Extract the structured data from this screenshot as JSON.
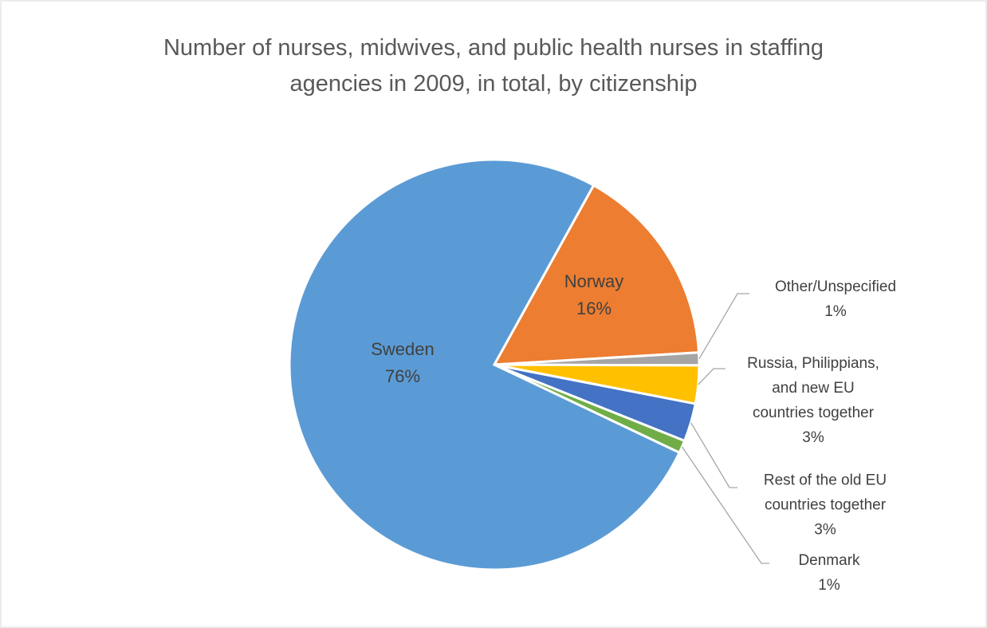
{
  "chart_data": {
    "type": "pie",
    "title": "Number of nurses, midwives, and public health nurses in staffing agencies in 2009, in total, by citizenship",
    "categories": [
      "Norway",
      "Other/Unspecified",
      "Russia, Philippians, and new EU countries together",
      "Rest of the old EU countries together",
      "Denmark",
      "Sweden"
    ],
    "values": [
      16,
      1,
      3,
      3,
      1,
      76
    ],
    "value_labels": [
      "16%",
      "1%",
      "3%",
      "3%",
      "1%",
      "76%"
    ],
    "colors": [
      "#ed7d31",
      "#a5a5a5",
      "#ffc000",
      "#4472c4",
      "#70ad47",
      "#5b9bd5"
    ]
  }
}
